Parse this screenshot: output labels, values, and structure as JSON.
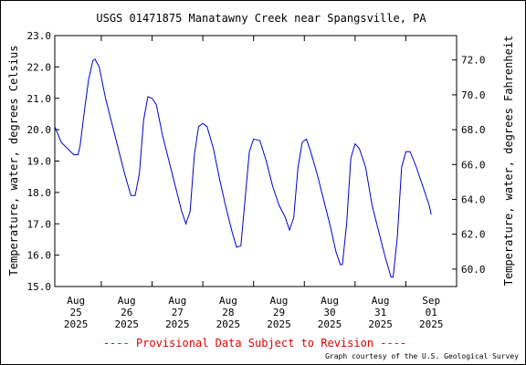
{
  "chart_data": {
    "type": "line",
    "title": "USGS 01471875 Manatawny Creek near Spangsville, PA",
    "ylabel_left": "Temperature, water, degrees Celsius",
    "ylabel_right": "Temperature, water, degrees Fahrenheit",
    "ylim": [
      15.0,
      23.0
    ],
    "yticks_left": [
      "15.0",
      "16.0",
      "17.0",
      "18.0",
      "19.0",
      "20.0",
      "21.0",
      "22.0",
      "23.0"
    ],
    "yticks_left_values": [
      15,
      16,
      17,
      18,
      19,
      20,
      21,
      22,
      23
    ],
    "yticks_right": [
      "60.0",
      "62.0",
      "64.0",
      "66.0",
      "68.0",
      "70.0",
      "72.0"
    ],
    "yticks_right_values_f": [
      60,
      62,
      64,
      66,
      68,
      70,
      72
    ],
    "xlim_days": [
      "2025-08-24T14:00",
      "2025-09-01T12:00"
    ],
    "xticks": [
      {
        "date": "2025-08-25",
        "lines": [
          "Aug",
          "25",
          "2025"
        ]
      },
      {
        "date": "2025-08-26",
        "lines": [
          "Aug",
          "26",
          "2025"
        ]
      },
      {
        "date": "2025-08-27",
        "lines": [
          "Aug",
          "27",
          "2025"
        ]
      },
      {
        "date": "2025-08-28",
        "lines": [
          "Aug",
          "28",
          "2025"
        ]
      },
      {
        "date": "2025-08-29",
        "lines": [
          "Aug",
          "29",
          "2025"
        ]
      },
      {
        "date": "2025-08-30",
        "lines": [
          "Aug",
          "30",
          "2025"
        ]
      },
      {
        "date": "2025-08-31",
        "lines": [
          "Aug",
          "31",
          "2025"
        ]
      },
      {
        "date": "2025-09-01",
        "lines": [
          "Sep",
          "01",
          "2025"
        ]
      }
    ],
    "series": [
      {
        "color": "#0000cc",
        "points": [
          [
            "2025-08-24T14:00",
            20.1
          ],
          [
            "2025-08-24T17:00",
            19.6
          ],
          [
            "2025-08-24T20:00",
            19.4
          ],
          [
            "2025-08-24T23:00",
            19.2
          ],
          [
            "2025-08-25T01:00",
            19.2
          ],
          [
            "2025-08-25T02:00",
            19.5
          ],
          [
            "2025-08-25T04:00",
            20.6
          ],
          [
            "2025-08-25T06:00",
            21.6
          ],
          [
            "2025-08-25T08:00",
            22.2
          ],
          [
            "2025-08-25T09:00",
            22.25
          ],
          [
            "2025-08-25T11:00",
            22.0
          ],
          [
            "2025-08-25T14:00",
            21.0
          ],
          [
            "2025-08-25T17:00",
            20.2
          ],
          [
            "2025-08-25T20:00",
            19.4
          ],
          [
            "2025-08-25T23:00",
            18.6
          ],
          [
            "2025-08-26T02:00",
            17.9
          ],
          [
            "2025-08-26T04:00",
            17.9
          ],
          [
            "2025-08-26T06:00",
            18.6
          ],
          [
            "2025-08-26T08:00",
            20.3
          ],
          [
            "2025-08-26T10:00",
            21.05
          ],
          [
            "2025-08-26T12:00",
            21.0
          ],
          [
            "2025-08-26T14:00",
            20.8
          ],
          [
            "2025-08-26T17:00",
            19.8
          ],
          [
            "2025-08-26T20:00",
            19.0
          ],
          [
            "2025-08-26T23:00",
            18.2
          ],
          [
            "2025-08-27T02:00",
            17.4
          ],
          [
            "2025-08-27T04:00",
            17.0
          ],
          [
            "2025-08-27T06:00",
            17.4
          ],
          [
            "2025-08-27T08:00",
            19.2
          ],
          [
            "2025-08-27T10:00",
            20.1
          ],
          [
            "2025-08-27T12:00",
            20.2
          ],
          [
            "2025-08-27T14:00",
            20.1
          ],
          [
            "2025-08-27T17:00",
            19.4
          ],
          [
            "2025-08-27T20:00",
            18.4
          ],
          [
            "2025-08-27T23:00",
            17.5
          ],
          [
            "2025-08-28T02:00",
            16.7
          ],
          [
            "2025-08-28T04:00",
            16.25
          ],
          [
            "2025-08-28T06:00",
            16.3
          ],
          [
            "2025-08-28T08:00",
            17.8
          ],
          [
            "2025-08-28T10:00",
            19.3
          ],
          [
            "2025-08-28T12:00",
            19.7
          ],
          [
            "2025-08-28T15:00",
            19.65
          ],
          [
            "2025-08-28T18:00",
            19.0
          ],
          [
            "2025-08-28T21:00",
            18.2
          ],
          [
            "2025-08-29T00:00",
            17.6
          ],
          [
            "2025-08-29T03:00",
            17.2
          ],
          [
            "2025-08-29T05:00",
            16.8
          ],
          [
            "2025-08-29T07:00",
            17.2
          ],
          [
            "2025-08-29T09:00",
            18.8
          ],
          [
            "2025-08-29T11:00",
            19.6
          ],
          [
            "2025-08-29T13:00",
            19.7
          ],
          [
            "2025-08-29T15:00",
            19.3
          ],
          [
            "2025-08-29T18:00",
            18.6
          ],
          [
            "2025-08-29T21:00",
            17.8
          ],
          [
            "2025-08-30T00:00",
            17.0
          ],
          [
            "2025-08-30T03:00",
            16.1
          ],
          [
            "2025-08-30T05:00",
            15.7
          ],
          [
            "2025-08-30T06:00",
            15.7
          ],
          [
            "2025-08-30T08:00",
            17.0
          ],
          [
            "2025-08-30T10:00",
            19.1
          ],
          [
            "2025-08-30T12:00",
            19.55
          ],
          [
            "2025-08-30T14:00",
            19.4
          ],
          [
            "2025-08-30T17:00",
            18.8
          ],
          [
            "2025-08-30T20:00",
            17.6
          ],
          [
            "2025-08-30T23:00",
            16.8
          ],
          [
            "2025-08-31T02:00",
            16.0
          ],
          [
            "2025-08-31T05:00",
            15.3
          ],
          [
            "2025-08-31T06:00",
            15.3
          ],
          [
            "2025-08-31T08:00",
            16.6
          ],
          [
            "2025-08-31T10:00",
            18.8
          ],
          [
            "2025-08-31T12:00",
            19.3
          ],
          [
            "2025-08-31T14:00",
            19.3
          ],
          [
            "2025-08-31T17:00",
            18.8
          ],
          [
            "2025-08-31T20:00",
            18.2
          ],
          [
            "2025-08-31T23:00",
            17.6
          ],
          [
            "2025-09-01T00:00",
            17.3
          ]
        ]
      }
    ],
    "grid": false
  },
  "footer": {
    "provisional": "---- Provisional Data Subject to Revision ----",
    "credit": "Graph courtesy of the U.S. Geological Survey"
  }
}
